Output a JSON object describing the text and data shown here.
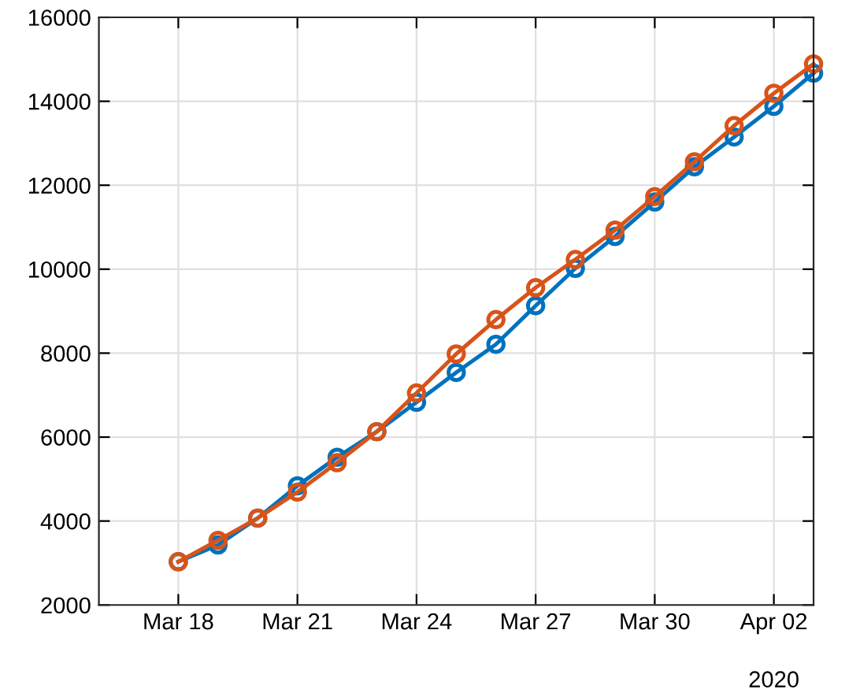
{
  "chart_data": {
    "type": "line",
    "x": [
      "2020-03-18",
      "2020-03-19",
      "2020-03-20",
      "2020-03-21",
      "2020-03-22",
      "2020-03-23",
      "2020-03-24",
      "2020-03-25",
      "2020-03-26",
      "2020-03-27",
      "2020-03-28",
      "2020-03-29",
      "2020-03-30",
      "2020-03-31",
      "2020-04-01",
      "2020-04-02",
      "2020-04-03"
    ],
    "series": [
      {
        "color": "#0072bd",
        "values": [
          3030,
          3430,
          4070,
          4840,
          5520,
          6130,
          6830,
          7540,
          8210,
          9130,
          10020,
          10780,
          11600,
          12440,
          13150,
          13880,
          14670
        ]
      },
      {
        "color": "#d95319",
        "values": [
          3030,
          3540,
          4070,
          4690,
          5390,
          6130,
          7050,
          7980,
          8800,
          9560,
          10230,
          10930,
          11730,
          12560,
          13420,
          14190,
          14890
        ]
      }
    ],
    "xlim": [
      "2020-03-16",
      "2020-04-03"
    ],
    "xticks": [
      {
        "value": "2020-03-18",
        "label": "Mar 18"
      },
      {
        "value": "2020-03-21",
        "label": "Mar 21"
      },
      {
        "value": "2020-03-24",
        "label": "Mar 24"
      },
      {
        "value": "2020-03-27",
        "label": "Mar 27"
      },
      {
        "value": "2020-03-30",
        "label": "Mar 30"
      },
      {
        "value": "2020-04-02",
        "label": "Apr 02"
      }
    ],
    "ylim": [
      2000,
      16000
    ],
    "yticks": [
      2000,
      4000,
      6000,
      8000,
      10000,
      12000,
      14000,
      16000
    ],
    "annotations": [
      "2020"
    ],
    "grid": true,
    "marker": "circle",
    "line_style": "solid",
    "legend": false
  }
}
